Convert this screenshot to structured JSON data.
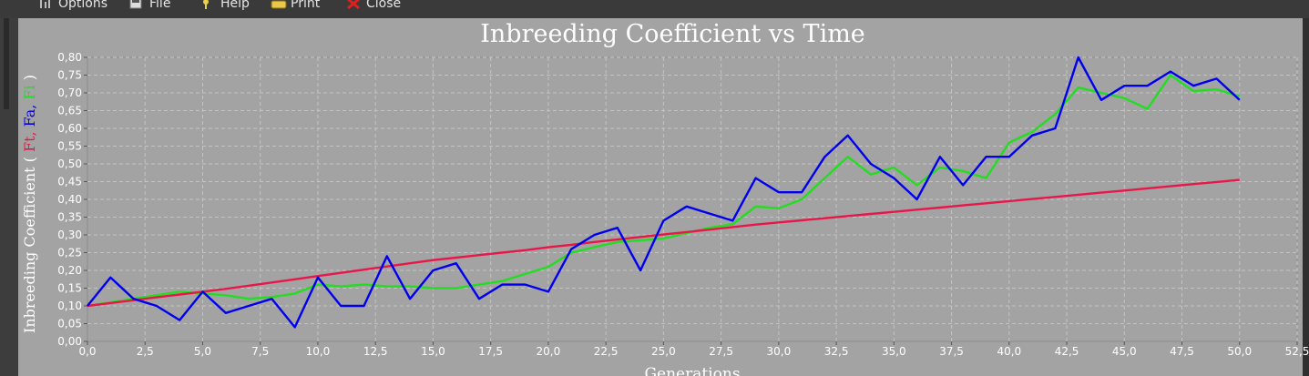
{
  "toolbar": {
    "items": [
      {
        "label": "Options",
        "icon": "options-icon"
      },
      {
        "label": "File",
        "icon": "file-icon"
      },
      {
        "label": "Help",
        "icon": "help-icon"
      },
      {
        "label": "Print",
        "icon": "print-icon"
      },
      {
        "label": "Close",
        "icon": "close-icon"
      }
    ]
  },
  "colors": {
    "panel_bg": "#a3a3a3",
    "grid": "#c4c4c4",
    "Ft": "#e8174a",
    "Fa": "#0000ee",
    "Fi": "#22dd22"
  },
  "chart_data": {
    "type": "line",
    "title": "Inbreeding Coefficient vs Time",
    "xlabel": "Generations",
    "ylabel_prefix": "Inbreeding Coefficient ( ",
    "ylabel_suffix": " )",
    "ylabel_series": [
      "Ft",
      "Fa",
      "Fi"
    ],
    "xlim": [
      0,
      52.5
    ],
    "ylim": [
      0,
      0.8
    ],
    "xticks": [
      "0,0",
      "2,5",
      "5,0",
      "7,5",
      "10,0",
      "12,5",
      "15,0",
      "17,5",
      "20,0",
      "22,5",
      "25,0",
      "27,5",
      "30,0",
      "32,5",
      "35,0",
      "37,5",
      "40,0",
      "42,5",
      "45,0",
      "47,5",
      "50,0",
      "52,5"
    ],
    "yticks": [
      "0,00",
      "0,05",
      "0,10",
      "0,15",
      "0,20",
      "0,25",
      "0,30",
      "0,35",
      "0,40",
      "0,45",
      "0,50",
      "0,55",
      "0,60",
      "0,65",
      "0,70",
      "0,75",
      "0,80"
    ],
    "grid": true,
    "x": [
      0,
      1,
      2,
      3,
      4,
      5,
      6,
      7,
      8,
      9,
      10,
      11,
      12,
      13,
      14,
      15,
      16,
      17,
      18,
      19,
      20,
      21,
      22,
      23,
      24,
      25,
      26,
      27,
      28,
      29,
      30,
      31,
      32,
      33,
      34,
      35,
      36,
      37,
      38,
      39,
      40,
      41,
      42,
      43,
      44,
      45,
      46,
      47,
      48,
      49,
      50
    ],
    "series": [
      {
        "name": "Ft",
        "color": "#e8174a",
        "values": [
          0.1,
          0.108,
          0.116,
          0.124,
          0.132,
          0.14,
          0.148,
          0.157,
          0.166,
          0.175,
          0.184,
          0.193,
          0.202,
          0.211,
          0.22,
          0.229,
          0.236,
          0.243,
          0.25,
          0.257,
          0.265,
          0.272,
          0.28,
          0.287,
          0.294,
          0.301,
          0.308,
          0.315,
          0.322,
          0.329,
          0.335,
          0.341,
          0.347,
          0.353,
          0.359,
          0.365,
          0.371,
          0.377,
          0.383,
          0.389,
          0.395,
          0.401,
          0.407,
          0.413,
          0.419,
          0.425,
          0.431,
          0.437,
          0.443,
          0.449,
          0.455
        ]
      },
      {
        "name": "Fa",
        "color": "#0000ee",
        "values": [
          0.1,
          0.18,
          0.12,
          0.1,
          0.06,
          0.14,
          0.08,
          0.1,
          0.12,
          0.04,
          0.18,
          0.1,
          0.1,
          0.24,
          0.12,
          0.2,
          0.22,
          0.12,
          0.16,
          0.16,
          0.14,
          0.26,
          0.3,
          0.32,
          0.2,
          0.34,
          0.38,
          0.36,
          0.34,
          0.46,
          0.42,
          0.42,
          0.52,
          0.58,
          0.5,
          0.46,
          0.4,
          0.52,
          0.44,
          0.52,
          0.52,
          0.58,
          0.6,
          0.8,
          0.68,
          0.72,
          0.72,
          0.76,
          0.72,
          0.74,
          0.68
        ]
      },
      {
        "name": "Fi",
        "color": "#22dd22",
        "values": [
          0.1,
          0.11,
          0.12,
          0.13,
          0.14,
          0.135,
          0.13,
          0.12,
          0.125,
          0.135,
          0.16,
          0.155,
          0.16,
          0.155,
          0.155,
          0.15,
          0.15,
          0.16,
          0.17,
          0.19,
          0.21,
          0.25,
          0.265,
          0.28,
          0.285,
          0.29,
          0.305,
          0.32,
          0.33,
          0.38,
          0.375,
          0.4,
          0.46,
          0.52,
          0.47,
          0.49,
          0.44,
          0.49,
          0.48,
          0.46,
          0.56,
          0.59,
          0.64,
          0.715,
          0.7,
          0.685,
          0.655,
          0.75,
          0.705,
          0.71,
          0.69
        ]
      }
    ]
  }
}
